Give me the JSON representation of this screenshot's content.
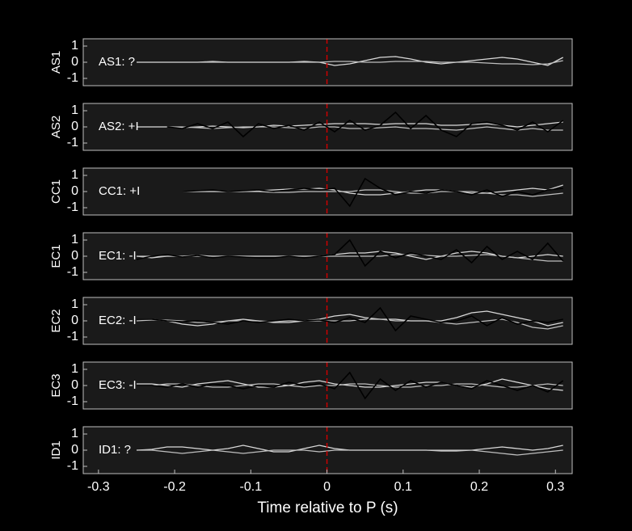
{
  "chart_data": [
    {
      "type": "line",
      "ylabel": "AS1",
      "annotation": "AS1: ?",
      "annotation_color": "#8c8c8c",
      "vline": {
        "value": 0,
        "color": "#cc0000"
      },
      "x": [
        -0.25,
        -0.23,
        -0.21,
        -0.19,
        -0.17,
        -0.15,
        -0.13,
        -0.11,
        -0.09,
        -0.07,
        -0.05,
        -0.03,
        -0.01,
        0.01,
        0.03,
        0.05,
        0.07,
        0.09,
        0.11,
        0.13,
        0.15,
        0.17,
        0.19,
        0.21,
        0.23,
        0.25,
        0.27,
        0.29,
        0.31
      ],
      "series": [
        {
          "color": "#d9d9d9",
          "values": [
            0,
            0,
            0,
            0,
            0,
            0.05,
            0,
            0,
            0,
            0,
            0,
            0.05,
            0,
            -0.2,
            -0.1,
            0.1,
            0.3,
            0.35,
            0.2,
            0,
            -0.1,
            0,
            0.1,
            0.2,
            0.3,
            0.2,
            0,
            -0.2,
            0.3
          ]
        },
        {
          "color": "#bfbfbf",
          "values": [
            0,
            0,
            0,
            0,
            0,
            0,
            0,
            0,
            0,
            0,
            0,
            0,
            0,
            0.05,
            0.05,
            0,
            0,
            0.05,
            0.05,
            0.05,
            0,
            0,
            0,
            -0.05,
            -0.1,
            -0.1,
            -0.15,
            -0.1,
            0.1
          ]
        }
      ],
      "xlim": [
        -0.32,
        0.322
      ],
      "ylim": [
        -1.45,
        1.45
      ],
      "yticks": [
        -1,
        0,
        1
      ]
    },
    {
      "type": "line",
      "ylabel": "AS2",
      "annotation": "AS2: +I",
      "annotation_color": "#cc0000",
      "vline": {
        "value": 0,
        "color": "#cc0000"
      },
      "x": [
        -0.25,
        -0.23,
        -0.21,
        -0.19,
        -0.17,
        -0.15,
        -0.13,
        -0.11,
        -0.09,
        -0.07,
        -0.05,
        -0.03,
        -0.01,
        0.01,
        0.03,
        0.05,
        0.07,
        0.09,
        0.11,
        0.13,
        0.15,
        0.17,
        0.19,
        0.21,
        0.23,
        0.25,
        0.27,
        0.29,
        0.31
      ],
      "series": [
        {
          "color": "#d9d9d9",
          "values": [
            0,
            0,
            0,
            -0.05,
            0,
            0.05,
            0,
            -0.05,
            0,
            0.1,
            0.05,
            0.1,
            0.15,
            0.2,
            0.2,
            0.2,
            0.15,
            0.2,
            0.2,
            0.2,
            0.1,
            0.1,
            0.15,
            0.2,
            0.1,
            0,
            0.1,
            0.2,
            0.3
          ]
        },
        {
          "color": "#bfbfbf",
          "values": [
            0,
            0,
            0,
            0,
            -0.05,
            -0.1,
            -0.05,
            0,
            0,
            0,
            -0.05,
            -0.1,
            0,
            0,
            -0.1,
            -0.1,
            -0.05,
            0,
            -0.1,
            -0.1,
            -0.15,
            -0.2,
            -0.1,
            0,
            -0.1,
            -0.2,
            -0.1,
            -0.2,
            -0.2
          ]
        },
        {
          "color": "#000000",
          "values": [
            null,
            null,
            0,
            -0.1,
            0.2,
            -0.1,
            0.3,
            -0.6,
            0.2,
            -0.1,
            0.1,
            -0.2,
            0.3,
            -0.3,
            0.4,
            -0.2,
            0.1,
            0.9,
            -0.1,
            0.7,
            -0.2,
            -0.6,
            0.2,
            0.3,
            0.1,
            -0.2,
            0.3,
            -0.3,
            0.4
          ]
        }
      ],
      "xlim": [
        -0.32,
        0.322
      ],
      "ylim": [
        -1.45,
        1.45
      ],
      "yticks": [
        -1,
        0,
        1
      ]
    },
    {
      "type": "line",
      "ylabel": "CC1",
      "annotation": "CC1: +I",
      "annotation_color": "#cc0000",
      "vline": {
        "value": 0,
        "color": "#cc0000"
      },
      "x": [
        -0.25,
        -0.23,
        -0.21,
        -0.19,
        -0.17,
        -0.15,
        -0.13,
        -0.11,
        -0.09,
        -0.07,
        -0.05,
        -0.03,
        -0.01,
        0.01,
        0.03,
        0.05,
        0.07,
        0.09,
        0.11,
        0.13,
        0.15,
        0.17,
        0.19,
        0.21,
        0.23,
        0.25,
        0.27,
        0.29,
        0.31
      ],
      "series": [
        {
          "color": "#d9d9d9",
          "values": [
            0,
            0,
            0,
            0,
            0,
            0,
            0,
            0,
            0.05,
            0.1,
            0.15,
            0.15,
            0.2,
            0.1,
            -0.1,
            -0.2,
            -0.2,
            -0.1,
            0,
            0.1,
            0.1,
            0,
            -0.1,
            -0.1,
            0,
            0.1,
            0.2,
            0.1,
            0.4
          ]
        },
        {
          "color": "#bfbfbf",
          "values": [
            0,
            0,
            0,
            0,
            0,
            0,
            0,
            0,
            0,
            -0.05,
            -0.05,
            0,
            0,
            0,
            0,
            0.1,
            0.1,
            0,
            -0.1,
            -0.1,
            0,
            0,
            0,
            -0.1,
            -0.2,
            -0.2,
            -0.3,
            -0.2,
            -0.1
          ]
        },
        {
          "color": "#000000",
          "values": [
            0,
            0,
            0,
            0,
            0.05,
            0.1,
            0,
            0.05,
            0.1,
            0,
            0.1,
            0.2,
            0.1,
            0.2,
            -0.9,
            0.8,
            0.2,
            -0.2,
            0,
            -0.1,
            0.1,
            0,
            -0.2,
            0.1,
            -0.3,
            0,
            -0.2,
            0.1,
            0.2
          ]
        }
      ],
      "xlim": [
        -0.32,
        0.322
      ],
      "ylim": [
        -1.45,
        1.45
      ],
      "yticks": [
        -1,
        0,
        1
      ]
    },
    {
      "type": "line",
      "ylabel": "EC1",
      "annotation": "EC1: -I",
      "annotation_color": "#1a1aa6",
      "vline": {
        "value": 0,
        "color": "#cc0000"
      },
      "x": [
        -0.25,
        -0.23,
        -0.21,
        -0.19,
        -0.17,
        -0.15,
        -0.13,
        -0.11,
        -0.09,
        -0.07,
        -0.05,
        -0.03,
        -0.01,
        0.01,
        0.03,
        0.05,
        0.07,
        0.09,
        0.11,
        0.13,
        0.15,
        0.17,
        0.19,
        0.21,
        0.23,
        0.25,
        0.27,
        0.29,
        0.31
      ],
      "series": [
        {
          "color": "#d9d9d9",
          "values": [
            0,
            -0.1,
            0,
            0,
            0.05,
            0,
            0,
            0,
            0,
            0,
            0,
            0,
            0,
            0.1,
            0.2,
            0.2,
            0.3,
            0.2,
            0,
            -0.2,
            0,
            0.2,
            0.3,
            0.2,
            0,
            -0.1,
            0,
            0.1,
            0
          ]
        },
        {
          "color": "#bfbfbf",
          "values": [
            0,
            0,
            0,
            0,
            0,
            0,
            0,
            0,
            0,
            0,
            0,
            0,
            0,
            0,
            0,
            0,
            0,
            0.1,
            0.1,
            0.05,
            0,
            0,
            0.05,
            0.1,
            0,
            -0.1,
            -0.2,
            -0.3,
            -0.3
          ]
        },
        {
          "color": "#000000",
          "values": [
            -0.2,
            0,
            0.1,
            -0.05,
            0.05,
            -0.1,
            0,
            -0.05,
            -0.1,
            -0.1,
            0,
            -0.1,
            0,
            0.1,
            1.0,
            -0.6,
            0.3,
            -0.1,
            0.2,
            0,
            -0.2,
            0.4,
            -0.4,
            0.6,
            -0.2,
            0.3,
            -0.2,
            0.8,
            -0.3
          ]
        }
      ],
      "xlim": [
        -0.32,
        0.322
      ],
      "ylim": [
        -1.45,
        1.45
      ],
      "yticks": [
        -1,
        0,
        1
      ]
    },
    {
      "type": "line",
      "ylabel": "EC2",
      "annotation": "EC2: -I",
      "annotation_color": "#1a1aa6",
      "vline": {
        "value": 0,
        "color": "#cc0000"
      },
      "x": [
        -0.25,
        -0.23,
        -0.21,
        -0.19,
        -0.17,
        -0.15,
        -0.13,
        -0.11,
        -0.09,
        -0.07,
        -0.05,
        -0.03,
        -0.01,
        0.01,
        0.03,
        0.05,
        0.07,
        0.09,
        0.11,
        0.13,
        0.15,
        0.17,
        0.19,
        0.21,
        0.23,
        0.25,
        0.27,
        0.29,
        0.31
      ],
      "series": [
        {
          "color": "#d9d9d9",
          "values": [
            0.1,
            0.1,
            0,
            -0.2,
            -0.3,
            -0.2,
            0,
            0.1,
            0,
            -0.1,
            -0.1,
            0,
            0.1,
            0.3,
            0.4,
            0.2,
            0.1,
            0.1,
            0,
            0,
            0,
            0.2,
            0.5,
            0.6,
            0.4,
            0.2,
            0,
            -0.3,
            -0.1
          ]
        },
        {
          "color": "#bfbfbf",
          "values": [
            0,
            0.05,
            0.05,
            0,
            -0.1,
            -0.1,
            0,
            0,
            0,
            -0.05,
            0,
            0,
            0,
            0,
            0,
            0.1,
            0.1,
            0,
            0,
            0,
            -0.1,
            -0.2,
            -0.1,
            0,
            0.1,
            -0.1,
            -0.4,
            -0.5,
            -0.3
          ]
        },
        {
          "color": "#000000",
          "values": [
            0.1,
            0.1,
            0,
            -0.05,
            0,
            -0.1,
            -0.2,
            0,
            -0.1,
            0,
            0.1,
            0,
            0.05,
            -0.1,
            0.2,
            -0.1,
            0.8,
            -0.6,
            0.3,
            0.1,
            -0.1,
            0,
            0.3,
            -0.3,
            0.2,
            -0.2,
            0,
            -0.1,
            0.1
          ]
        }
      ],
      "xlim": [
        -0.32,
        0.322
      ],
      "ylim": [
        -1.45,
        1.45
      ],
      "yticks": [
        -1,
        0,
        1
      ]
    },
    {
      "type": "line",
      "ylabel": "EC3",
      "annotation": "EC3: -I",
      "annotation_color": "#1a1aa6",
      "vline": {
        "value": 0,
        "color": "#cc0000"
      },
      "x": [
        -0.25,
        -0.23,
        -0.21,
        -0.19,
        -0.17,
        -0.15,
        -0.13,
        -0.11,
        -0.09,
        -0.07,
        -0.05,
        -0.03,
        -0.01,
        0.01,
        0.03,
        0.05,
        0.07,
        0.09,
        0.11,
        0.13,
        0.15,
        0.17,
        0.19,
        0.21,
        0.23,
        0.25,
        0.27,
        0.29,
        0.31
      ],
      "series": [
        {
          "color": "#d9d9d9",
          "values": [
            0.1,
            0.1,
            0,
            -0.1,
            0.1,
            0.2,
            0.3,
            0.1,
            -0.1,
            -0.1,
            0,
            0.2,
            0.3,
            0.1,
            0,
            -0.1,
            -0.1,
            0,
            0.1,
            0.2,
            0.2,
            0,
            -0.1,
            0.1,
            0.4,
            0.2,
            0,
            -0.2,
            -0.3
          ]
        },
        {
          "color": "#bfbfbf",
          "values": [
            0,
            0,
            0.1,
            0.1,
            0,
            -0.1,
            -0.1,
            0,
            0.1,
            0.1,
            0,
            -0.1,
            0,
            0,
            0.1,
            0.1,
            0,
            -0.1,
            -0.1,
            0,
            0,
            0.1,
            0.1,
            0,
            -0.1,
            -0.1,
            0,
            0.1,
            0
          ]
        },
        {
          "color": "#000000",
          "values": [
            0,
            0,
            -0.1,
            0.1,
            -0.1,
            0.1,
            0,
            -0.2,
            0,
            -0.1,
            0.2,
            0,
            0.1,
            -0.2,
            0.8,
            -0.8,
            0.4,
            -0.3,
            0.3,
            -0.1,
            0.2,
            0,
            -0.2,
            0.3,
            0,
            -0.3,
            0,
            -0.4,
            0.3
          ]
        }
      ],
      "xlim": [
        -0.32,
        0.322
      ],
      "ylim": [
        -1.45,
        1.45
      ],
      "yticks": [
        -1,
        0,
        1
      ]
    },
    {
      "type": "line",
      "ylabel": "ID1",
      "annotation": "ID1: ?",
      "annotation_color": "#8c8c8c",
      "vline": {
        "value": 0,
        "color": "#cc0000"
      },
      "x": [
        -0.25,
        -0.23,
        -0.21,
        -0.19,
        -0.17,
        -0.15,
        -0.13,
        -0.11,
        -0.09,
        -0.07,
        -0.05,
        -0.03,
        -0.01,
        0.01,
        0.03,
        0.05,
        0.07,
        0.09,
        0.11,
        0.13,
        0.15,
        0.17,
        0.19,
        0.21,
        0.23,
        0.25,
        0.27,
        0.29,
        0.31
      ],
      "series": [
        {
          "color": "#d9d9d9",
          "values": [
            0,
            0.05,
            0.2,
            0.2,
            0.1,
            0,
            0.1,
            0.3,
            0.1,
            -0.1,
            -0.1,
            0.1,
            0.3,
            0.1,
            0,
            0,
            0,
            0,
            0,
            0,
            -0.05,
            -0.05,
            0,
            0.1,
            0.2,
            0.1,
            0,
            0.1,
            0.3
          ]
        },
        {
          "color": "#bfbfbf",
          "values": [
            0,
            0,
            -0.1,
            -0.2,
            -0.1,
            0,
            -0.1,
            -0.2,
            -0.1,
            0,
            0,
            0,
            -0.1,
            0,
            0,
            0,
            0,
            0,
            0,
            0,
            0,
            0,
            0,
            -0.1,
            -0.2,
            -0.3,
            -0.2,
            -0.1,
            0
          ]
        }
      ],
      "xlim": [
        -0.32,
        0.322
      ],
      "ylim": [
        -1.45,
        1.45
      ],
      "yticks": [
        -1,
        0,
        1
      ],
      "xticks": [
        -0.3,
        -0.2,
        -0.1,
        0,
        0.1,
        0.2,
        0.3
      ],
      "xlabel": "Time relative to P (s)"
    }
  ]
}
